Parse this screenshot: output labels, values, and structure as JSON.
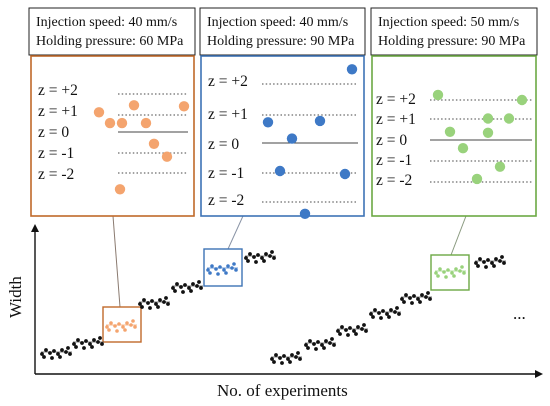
{
  "colors": {
    "orange": "#c0692a",
    "orange_dot": "#f4a46e",
    "blue": "#3d73b5",
    "blue_dot": "#3e79c6",
    "green": "#6ca844",
    "green_dot": "#99d27c",
    "dots": "#111111"
  },
  "panels": [
    {
      "id": "orange",
      "speed": "Injection speed: 40 mm/s",
      "pressure": "Holding pressure: 60 MPa",
      "z_labels": [
        "z = +2",
        "z = +1",
        "z =  0",
        "z = -1",
        "z = -2"
      ],
      "points_z": [
        1.0,
        0.45,
        0.45,
        1.35,
        0.45,
        1.3,
        -0.6,
        -1.25,
        -2.9
      ]
    },
    {
      "id": "blue",
      "speed": "Injection speed: 40 mm/s",
      "pressure": "Holding pressure: 90 MPa",
      "z_labels": [
        "z = +2",
        "z = +1",
        "z =  0",
        "z = -1",
        "z = -2"
      ],
      "points_z": [
        0.7,
        0.15,
        -0.95,
        0.75,
        -2.4,
        -1.05,
        2.5
      ]
    },
    {
      "id": "green",
      "speed": "Injection speed: 50 mm/s",
      "pressure": "Holding pressure: 90 MPa",
      "z_labels": [
        "z = +2",
        "z = +1",
        "z =  0",
        "z = -1",
        "z = -2"
      ],
      "points_z": [
        2.2,
        0.4,
        -0.4,
        1.05,
        -1.9,
        1.05,
        -1.3,
        0.35,
        1.95
      ]
    }
  ],
  "axes": {
    "xlabel": "No. of experiments",
    "ylabel": "Width",
    "ellipsis": "..."
  }
}
